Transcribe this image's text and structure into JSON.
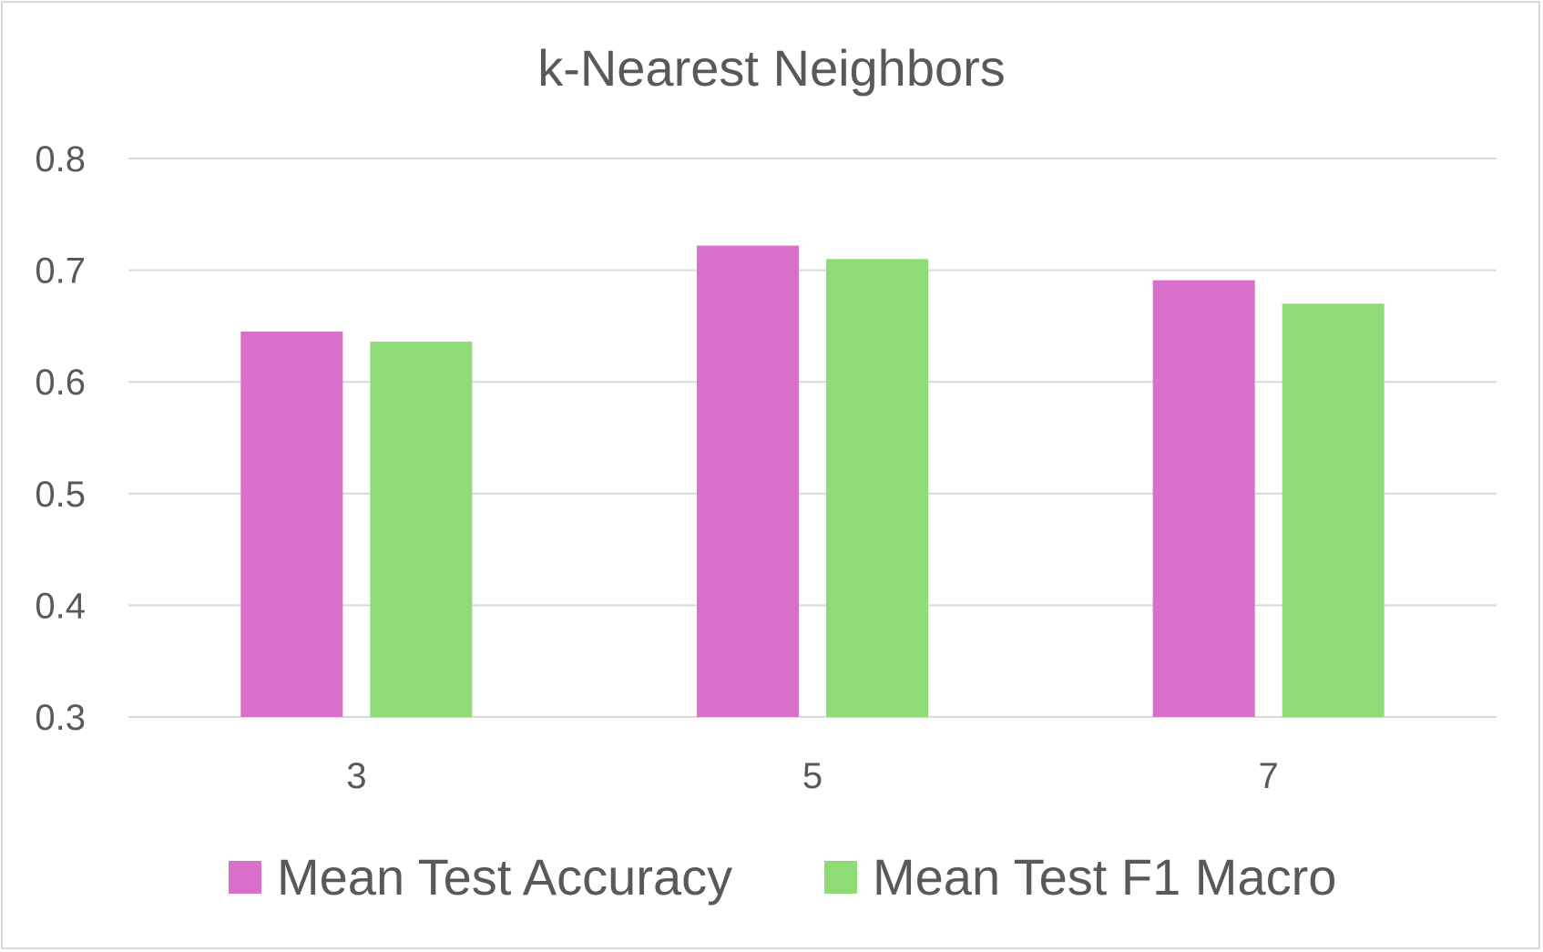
{
  "chart_data": {
    "type": "bar",
    "title": "k-Nearest Neighbors",
    "xlabel": "",
    "ylabel": "",
    "categories": [
      "3",
      "5",
      "7"
    ],
    "series": [
      {
        "name": "Mean Test Accuracy",
        "values": [
          0.645,
          0.722,
          0.691
        ],
        "color": "#d76fcb"
      },
      {
        "name": "Mean Test F1 Macro",
        "values": [
          0.636,
          0.71,
          0.67
        ],
        "color": "#8fdb75"
      }
    ],
    "ylim": [
      0.3,
      0.8
    ],
    "yticks": [
      "0.3",
      "0.4",
      "0.5",
      "0.6",
      "0.7",
      "0.8"
    ],
    "grid": true,
    "legend_position": "bottom",
    "colors": {
      "gridline": "#d9d9d9",
      "text": "#595959",
      "border": "#d9d9d9"
    }
  }
}
